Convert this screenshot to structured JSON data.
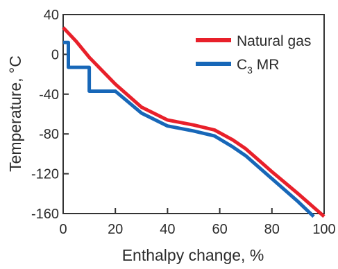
{
  "chart_data": {
    "type": "line",
    "title": "",
    "xlabel": "Enthalpy change, %",
    "ylabel": "Temperature, °C",
    "xlim": [
      0,
      100
    ],
    "ylim": [
      -160,
      40
    ],
    "xticks": [
      0,
      20,
      40,
      60,
      80,
      100
    ],
    "yticks": [
      40,
      0,
      -40,
      -80,
      -120,
      -160
    ],
    "grid": false,
    "legend_position": "top-right",
    "series": [
      {
        "name": "Natural gas",
        "color": "#e8202a",
        "points": [
          [
            0,
            27
          ],
          [
            5,
            13
          ],
          [
            10,
            -3
          ],
          [
            20,
            -30
          ],
          [
            30,
            -53
          ],
          [
            40,
            -66
          ],
          [
            50,
            -71
          ],
          [
            58,
            -76
          ],
          [
            65,
            -86
          ],
          [
            70,
            -95
          ],
          [
            80,
            -118
          ],
          [
            90,
            -140
          ],
          [
            100,
            -163
          ]
        ]
      },
      {
        "name": "C3 MR",
        "name_main": "C",
        "name_sub": "3",
        "name_rest": " MR",
        "color": "#1767b8",
        "points": [
          [
            0,
            12
          ],
          [
            2,
            12
          ],
          [
            2,
            -13
          ],
          [
            10,
            -13
          ],
          [
            10,
            -37
          ],
          [
            20,
            -37
          ],
          [
            30,
            -59
          ],
          [
            40,
            -72
          ],
          [
            50,
            -77
          ],
          [
            58,
            -82
          ],
          [
            65,
            -93
          ],
          [
            70,
            -102
          ],
          [
            80,
            -125
          ],
          [
            90,
            -148
          ],
          [
            96,
            -163
          ]
        ]
      }
    ]
  }
}
